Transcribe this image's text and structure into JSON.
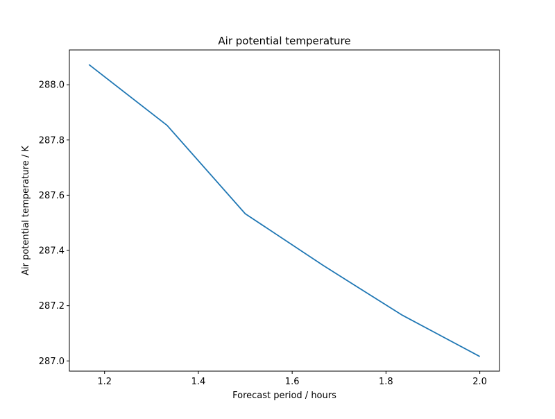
{
  "chart_data": {
    "type": "line",
    "title": "Air potential temperature",
    "xlabel": "Forecast period / hours",
    "ylabel": "Air potential temperature / K",
    "xlim": [
      1.125,
      2.042
    ],
    "ylim": [
      286.963,
      288.126
    ],
    "xticks": [
      1.2,
      1.4,
      1.6,
      1.8,
      2.0
    ],
    "xtick_labels": [
      "1.2",
      "1.4",
      "1.6",
      "1.8",
      "2.0"
    ],
    "yticks": [
      287.0,
      287.2,
      287.4,
      287.6,
      287.8,
      288.0
    ],
    "ytick_labels": [
      "287.0",
      "287.2",
      "287.4",
      "287.6",
      "287.8",
      "288.0"
    ],
    "grid": false,
    "series": [
      {
        "color": "#1f77b4",
        "x": [
          1.1667,
          1.3333,
          1.5,
          1.6667,
          1.8333,
          2.0
        ],
        "y": [
          288.073,
          287.853,
          287.533,
          287.345,
          287.167,
          287.016
        ]
      }
    ]
  }
}
